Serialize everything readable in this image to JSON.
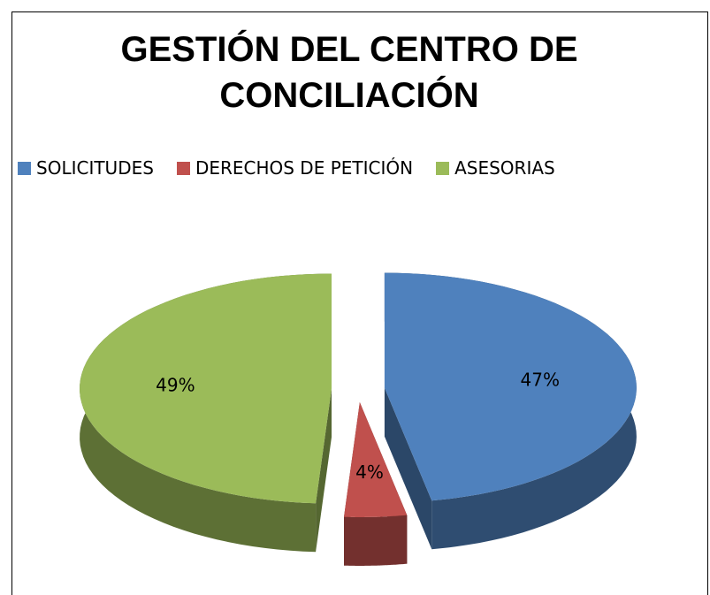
{
  "chart_data": {
    "type": "pie3d",
    "title": "GESTIÓN DEL CENTRO DE CONCILIACIÓN",
    "categories": [
      "SOLICITUDES",
      "DERECHOS DE PETICIÓN",
      "ASESORIAS"
    ],
    "values": [
      47,
      4,
      49
    ],
    "value_labels": [
      "47%",
      "4%",
      "49%"
    ],
    "colors": [
      "#4f81bd",
      "#c0504d",
      "#9bbb59"
    ],
    "legend": "top"
  }
}
